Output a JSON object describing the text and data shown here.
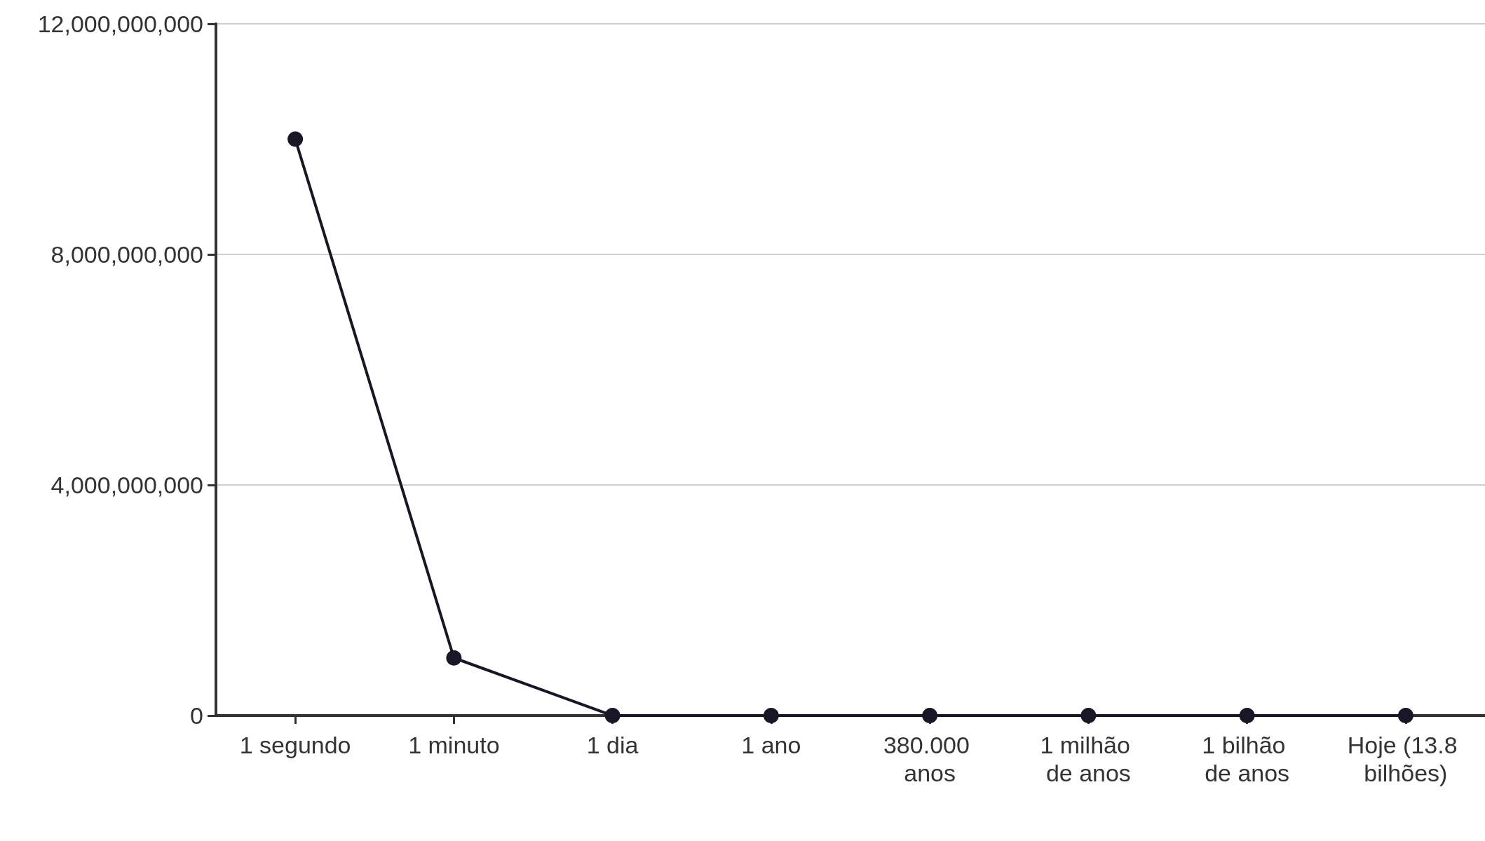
{
  "chart_data": {
    "type": "line",
    "categories": [
      "1 segundo",
      "1 minuto",
      "1 dia",
      "1 ano",
      "380.000 anos",
      "1 milhão de anos",
      "1 bilhão de anos",
      "Hoje (13.8 bilhões)"
    ],
    "series": [
      {
        "color": "#1a1625",
        "values": [
          10000000000,
          1000000000,
          0,
          0,
          0,
          0,
          0,
          0
        ]
      }
    ],
    "ylim": [
      0,
      12000000000
    ],
    "yticks": [
      0,
      {
        "value": 4000000000,
        "label": "4,000,000,000"
      },
      {
        "value": 8000000000,
        "label": "8,000,000,000"
      },
      {
        "value": 12000000000,
        "label": "12,000,000,000"
      }
    ],
    "grid": "y",
    "marker": "circle",
    "line_style": "solid"
  }
}
